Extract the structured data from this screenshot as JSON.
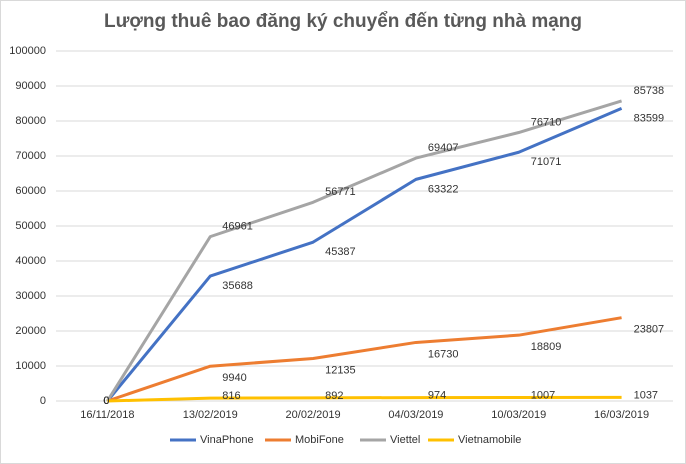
{
  "chart_data": {
    "type": "line",
    "title": "Lượng thuê bao đăng ký chuyển đến từng nhà mạng",
    "categories": [
      "16/11/2018",
      "13/02/2019",
      "20/02/2019",
      "04/03/2019",
      "10/03/2019",
      "16/03/2019"
    ],
    "series": [
      {
        "name": "VinaPhone",
        "color": "#4472c4",
        "values": [
          0,
          35688,
          45387,
          63322,
          71071,
          83599
        ]
      },
      {
        "name": "MobiFone",
        "color": "#ed7d31",
        "values": [
          0,
          9940,
          12135,
          16730,
          18809,
          23807
        ]
      },
      {
        "name": "Viettel",
        "color": "#a5a5a5",
        "values": [
          0,
          46961,
          56771,
          69407,
          76710,
          85738
        ]
      },
      {
        "name": "Vietnamobile",
        "color": "#ffc000",
        "values": [
          0,
          816,
          892,
          974,
          1007,
          1037
        ]
      }
    ],
    "ylim": [
      0,
      100000
    ],
    "yticks": [
      0,
      10000,
      20000,
      30000,
      40000,
      50000,
      60000,
      70000,
      80000,
      90000,
      100000
    ],
    "grid": true,
    "legend": "bottom"
  }
}
